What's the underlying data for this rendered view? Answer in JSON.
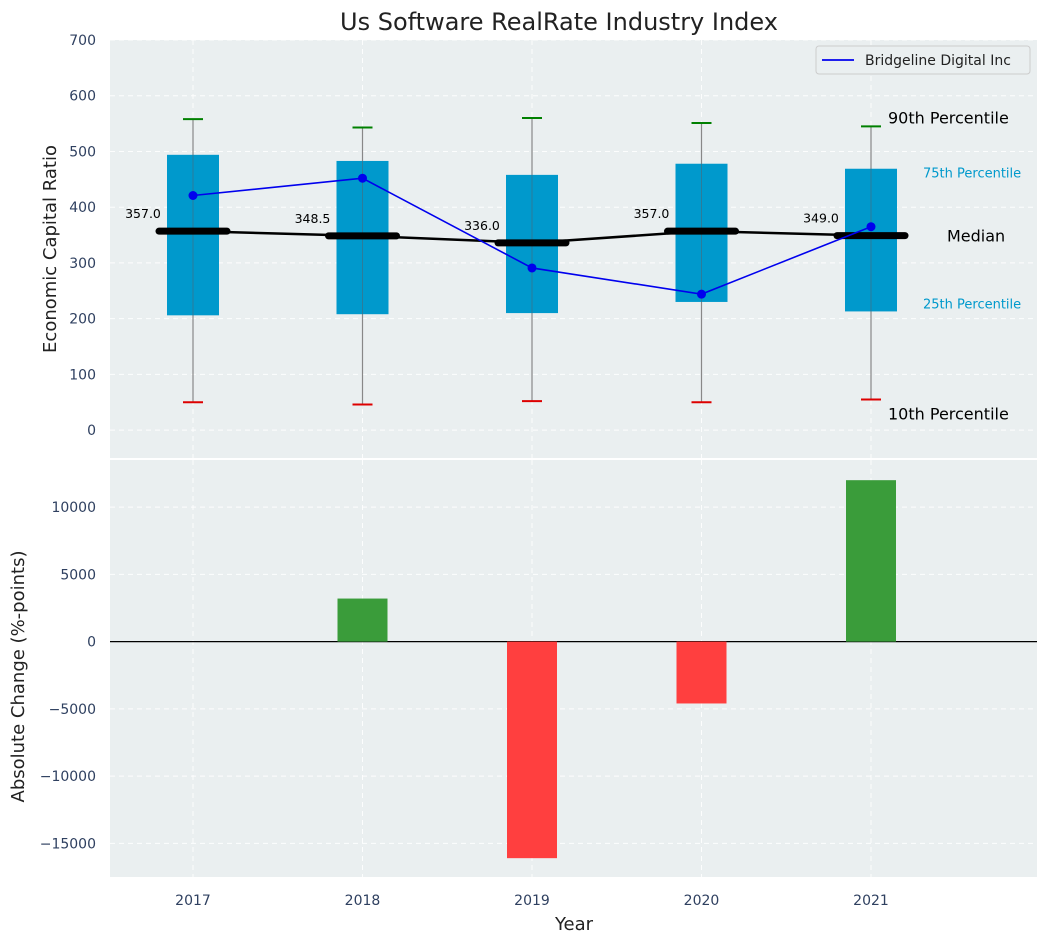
{
  "chart_data": [
    {
      "type": "box",
      "title": "Us Software RealRate Industry Index",
      "ylabel": "Economic Capital Ratio",
      "ylim": [
        -50,
        700
      ],
      "yticks": [
        0,
        100,
        200,
        300,
        400,
        500,
        600,
        700
      ],
      "categories": [
        "2017",
        "2018",
        "2019",
        "2020",
        "2021"
      ],
      "p10": [
        50,
        46,
        52,
        50,
        55
      ],
      "p25": [
        206,
        208,
        210,
        230,
        213
      ],
      "median": [
        357.0,
        348.5,
        336.0,
        357.0,
        349.0
      ],
      "median_labels": [
        "357.0",
        "348.5",
        "336.0",
        "357.0",
        "349.0"
      ],
      "p75": [
        494,
        483,
        458,
        478,
        469
      ],
      "p90": [
        558,
        543,
        560,
        551,
        545
      ],
      "company_series": {
        "name": "Bridgeline Digital Inc",
        "values": [
          421,
          452,
          291,
          244,
          365
        ]
      },
      "legend": [
        "Bridgeline Digital Inc"
      ],
      "legend_position": "top-right",
      "percentile_labels": {
        "p90": "90th Percentile",
        "p75": "75th Percentile",
        "median": "Median",
        "p25": "25th Percentile",
        "p10": "10th Percentile"
      },
      "grid": true
    },
    {
      "type": "bar",
      "xlabel": "Year",
      "ylabel": "Absolute Change (%-points)",
      "categories": [
        "2017",
        "2018",
        "2019",
        "2020",
        "2021"
      ],
      "values": [
        0,
        3200,
        -16100,
        -4600,
        12000
      ],
      "ylim": [
        -17500,
        13500
      ],
      "yticks": [
        -15000,
        -10000,
        -5000,
        0,
        5000,
        10000
      ],
      "ytick_labels": [
        "−15000",
        "−10000",
        "−5000",
        "0",
        "5000",
        "10000"
      ],
      "grid": true
    }
  ],
  "colors": {
    "background": "#eaeff0",
    "box": "#0099cc",
    "company_line": "#0000ee",
    "median": "#000000",
    "whisker": "#888888",
    "p90_cap": "#008000",
    "p10_cap": "#dd0000",
    "positive": "#3a9c3a",
    "negative": "#ff3f3f"
  }
}
